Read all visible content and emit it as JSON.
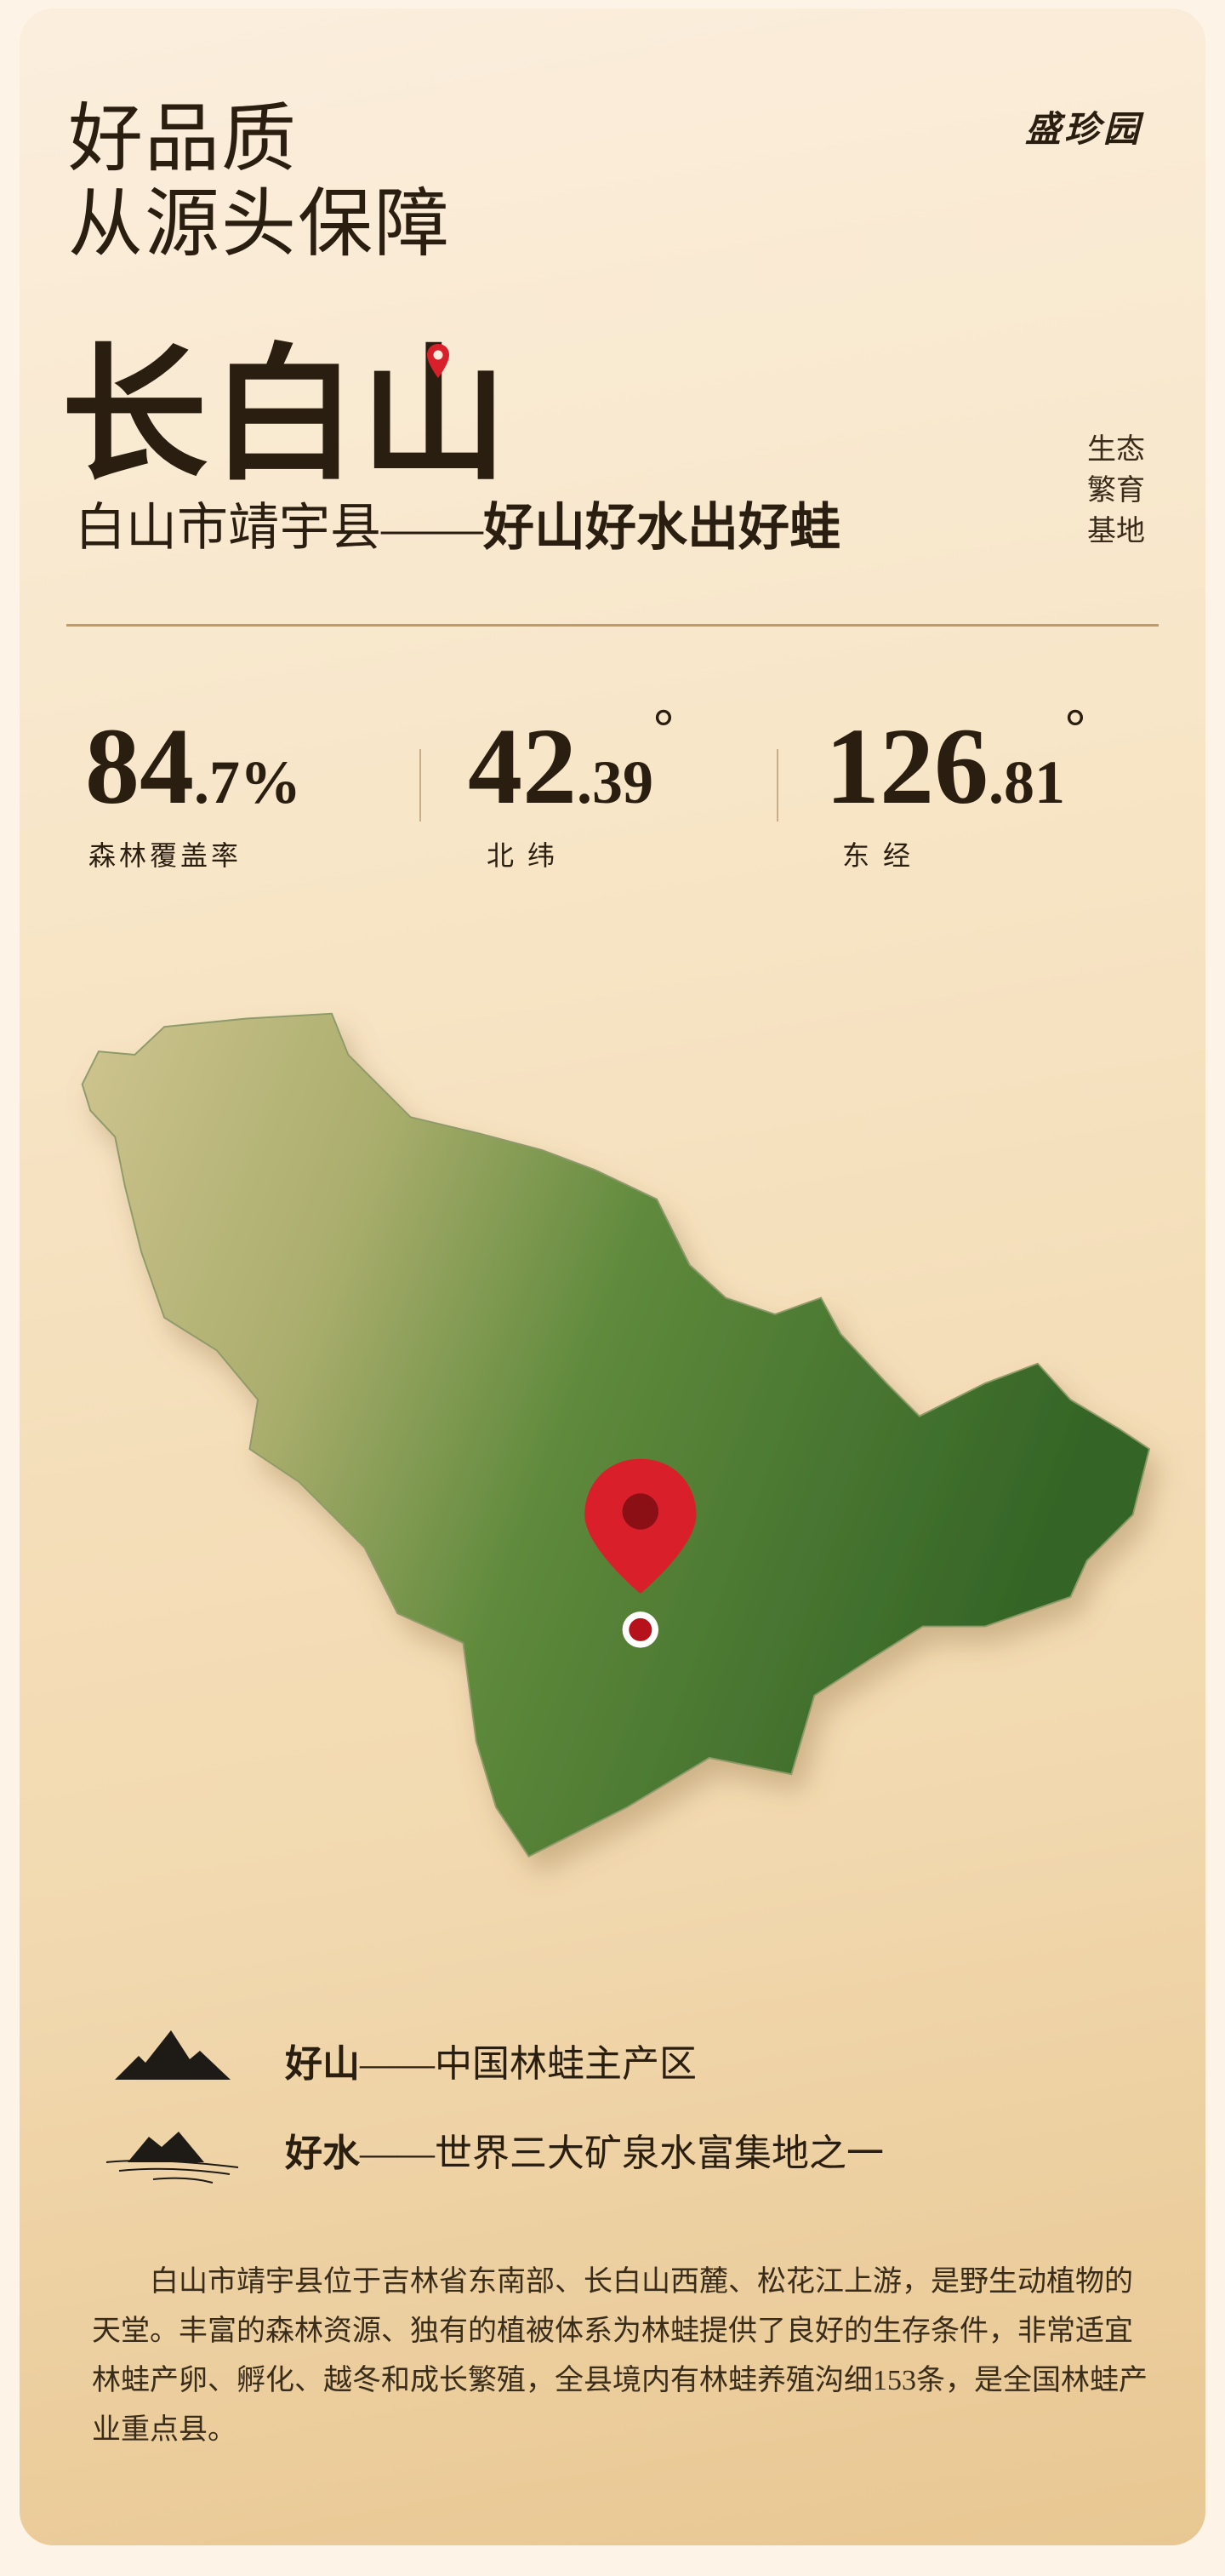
{
  "header": {
    "title_line1": "好品质",
    "title_line2": "从源头保障",
    "brand_logo": "盛珍园"
  },
  "location": {
    "name": "长白山",
    "subtitle_plain": "白山市靖宇县——",
    "subtitle_bold": "好山好水出好蛙",
    "side_label": [
      "生态",
      "繁育",
      "基地"
    ],
    "pin_icon": "map-pin-icon",
    "pin_color": "#d9202a"
  },
  "stats": [
    {
      "int": "84",
      "dec": ".7",
      "unit": "%",
      "label": "森林覆盖率"
    },
    {
      "int": "42",
      "dec": ".39",
      "unit": "°",
      "label": "北 纬"
    },
    {
      "int": "126",
      "dec": ".81",
      "unit": "°",
      "label": "东 经"
    }
  ],
  "features": [
    {
      "icon": "mountain-icon",
      "bold": "好山",
      "text": "——中国林蛙主产区"
    },
    {
      "icon": "mountain-water-icon",
      "bold": "好水",
      "text": "——世界三大矿泉水富集地之一"
    }
  ],
  "description": "白山市靖宇县位于吉林省东南部、长白山西麓、松花江上游，是野生动植物的天堂。丰富的森林资源、独有的植被体系为林蛙提供了良好的生存条件，非常适宜林蛙产卵、孵化、越冬和成长繁殖，全县境内有林蛙养殖沟细153条，是全国林蛙产业重点县。",
  "colors": {
    "text": "#2a1e10",
    "accent": "#c19a65",
    "forest": "#3b6e2a"
  }
}
